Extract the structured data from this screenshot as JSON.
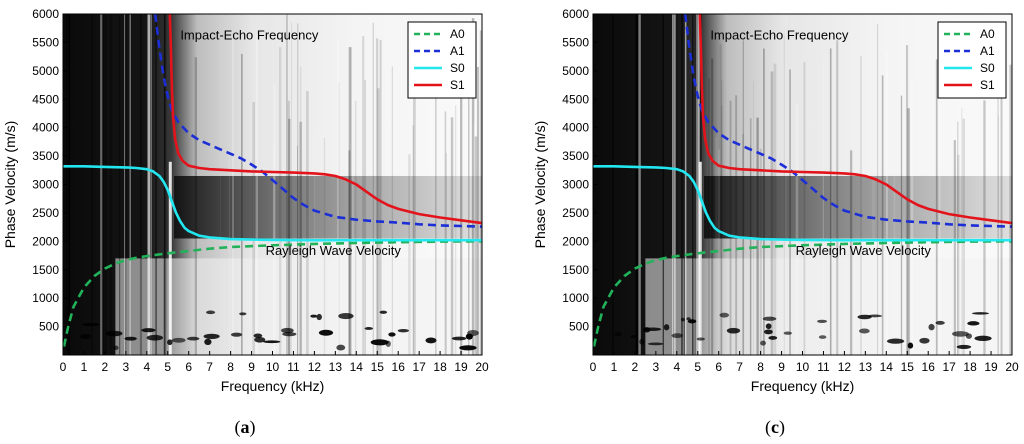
{
  "colors": {
    "A0": "#22b35a",
    "A1": "#1c2fd6",
    "S0": "#22e6f0",
    "S1": "#e3131b"
  },
  "chart_data": [
    {
      "panel": "a",
      "type": "line",
      "caption_label": "a",
      "background": "dispersion image (grayscale spectrogram)",
      "xlabel": "Frequency (kHz)",
      "ylabel": "Phase Velocity (m/s)",
      "xlim": [
        0,
        20
      ],
      "ylim": [
        0,
        6000
      ],
      "xticks": [
        "0",
        "1",
        "2",
        "3",
        "4",
        "5",
        "6",
        "7",
        "8",
        "9",
        "10",
        "11",
        "12",
        "13",
        "14",
        "15",
        "16",
        "17",
        "18",
        "19",
        "20"
      ],
      "yticks": [
        "500",
        "1000",
        "1500",
        "2000",
        "2500",
        "3000",
        "3500",
        "4000",
        "4500",
        "5000",
        "5500",
        "6000"
      ],
      "annotations": [
        "Impact-Echo Frequency",
        "Rayleigh Wave Velocity"
      ],
      "legend": [
        "A0",
        "A1",
        "S0",
        "S1"
      ],
      "series": [
        {
          "name": "A0",
          "style": "dashed",
          "x": [
            0.05,
            0.25,
            0.5,
            1,
            1.5,
            2,
            2.5,
            3,
            3.5,
            4,
            4.5,
            5,
            6,
            7,
            8,
            10,
            12,
            14,
            16,
            18,
            20
          ],
          "y": [
            150,
            500,
            850,
            1190,
            1390,
            1520,
            1610,
            1670,
            1710,
            1740,
            1765,
            1790,
            1830,
            1870,
            1900,
            1930,
            1955,
            1970,
            1985,
            1995,
            2000
          ]
        },
        {
          "name": "A1",
          "style": "dashed",
          "x": [
            4.4,
            4.6,
            4.8,
            5.0,
            5.2,
            5.5,
            6,
            6.5,
            7,
            7.5,
            8,
            8.5,
            9,
            9.5,
            10,
            10.5,
            11,
            11.5,
            12,
            13,
            14,
            15,
            16,
            17,
            18,
            19,
            20
          ],
          "y": [
            6000,
            5400,
            4900,
            4550,
            4300,
            4100,
            3900,
            3780,
            3700,
            3620,
            3540,
            3460,
            3350,
            3230,
            3080,
            2920,
            2760,
            2640,
            2540,
            2430,
            2380,
            2350,
            2330,
            2300,
            2280,
            2270,
            2260
          ]
        },
        {
          "name": "S0",
          "style": "solid",
          "x": [
            0,
            1,
            2,
            3,
            3.5,
            4,
            4.3,
            4.6,
            4.8,
            5.0,
            5.2,
            5.4,
            5.6,
            5.8,
            6,
            6.5,
            7,
            8,
            9,
            10,
            12,
            14,
            16,
            18,
            20
          ],
          "y": [
            3320,
            3320,
            3310,
            3300,
            3290,
            3270,
            3230,
            3150,
            3050,
            2900,
            2700,
            2500,
            2350,
            2240,
            2180,
            2100,
            2070,
            2040,
            2030,
            2025,
            2020,
            2020,
            2020,
            2020,
            2020
          ]
        },
        {
          "name": "S1",
          "style": "solid",
          "x": [
            5.1,
            5.15,
            5.2,
            5.25,
            5.35,
            5.5,
            5.7,
            6,
            6.5,
            7,
            8,
            9,
            10,
            11,
            12,
            12.5,
            13,
            13.5,
            14,
            14.5,
            15,
            15.5,
            16,
            17,
            18,
            19,
            20
          ],
          "y": [
            6000,
            5400,
            4700,
            4200,
            3800,
            3550,
            3420,
            3330,
            3290,
            3270,
            3250,
            3230,
            3220,
            3210,
            3195,
            3180,
            3150,
            3090,
            3000,
            2870,
            2740,
            2640,
            2570,
            2480,
            2420,
            2370,
            2320
          ]
        }
      ]
    },
    {
      "panel": "c",
      "type": "line",
      "caption_label": "c",
      "background": "dispersion image (grayscale spectrogram)",
      "xlabel": "Frequency (kHz)",
      "ylabel": "Phase Velocity (m/s)",
      "xlim": [
        0,
        20
      ],
      "ylim": [
        0,
        6000
      ],
      "xticks": [
        "0",
        "1",
        "2",
        "3",
        "4",
        "5",
        "6",
        "7",
        "8",
        "9",
        "10",
        "11",
        "12",
        "13",
        "14",
        "15",
        "16",
        "17",
        "18",
        "19",
        "20"
      ],
      "yticks": [
        "500",
        "1000",
        "1500",
        "2000",
        "2500",
        "3000",
        "3500",
        "4000",
        "4500",
        "5000",
        "5500",
        "6000"
      ],
      "annotations": [
        "Impact-Echo Frequency",
        "Rayleigh Wave Velocity"
      ],
      "legend": [
        "A0",
        "A1",
        "S0",
        "S1"
      ],
      "series": [
        {
          "name": "A0",
          "style": "dashed",
          "x": [
            0.05,
            0.25,
            0.5,
            1,
            1.5,
            2,
            2.5,
            3,
            3.5,
            4,
            4.5,
            5,
            6,
            7,
            8,
            10,
            12,
            14,
            16,
            18,
            20
          ],
          "y": [
            150,
            500,
            850,
            1190,
            1390,
            1520,
            1610,
            1670,
            1710,
            1740,
            1765,
            1790,
            1830,
            1870,
            1900,
            1930,
            1955,
            1970,
            1985,
            1995,
            2000
          ]
        },
        {
          "name": "A1",
          "style": "dashed",
          "x": [
            4.4,
            4.6,
            4.8,
            5.0,
            5.2,
            5.5,
            6,
            6.5,
            7,
            7.5,
            8,
            8.5,
            9,
            9.5,
            10,
            10.5,
            11,
            11.5,
            12,
            13,
            14,
            15,
            16,
            17,
            18,
            19,
            20
          ],
          "y": [
            6000,
            5400,
            4900,
            4550,
            4300,
            4100,
            3900,
            3780,
            3700,
            3620,
            3540,
            3460,
            3350,
            3230,
            3080,
            2920,
            2760,
            2640,
            2540,
            2430,
            2380,
            2350,
            2330,
            2300,
            2280,
            2270,
            2260
          ]
        },
        {
          "name": "S0",
          "style": "solid",
          "x": [
            0,
            1,
            2,
            3,
            3.5,
            4,
            4.3,
            4.6,
            4.8,
            5.0,
            5.2,
            5.4,
            5.6,
            5.8,
            6,
            6.5,
            7,
            8,
            9,
            10,
            12,
            14,
            16,
            18,
            20
          ],
          "y": [
            3320,
            3320,
            3310,
            3300,
            3290,
            3270,
            3230,
            3150,
            3050,
            2900,
            2700,
            2500,
            2350,
            2240,
            2180,
            2100,
            2070,
            2040,
            2030,
            2025,
            2020,
            2020,
            2020,
            2020,
            2020
          ]
        },
        {
          "name": "S1",
          "style": "solid",
          "x": [
            5.1,
            5.15,
            5.2,
            5.25,
            5.35,
            5.5,
            5.7,
            6,
            6.5,
            7,
            8,
            9,
            10,
            11,
            12,
            12.5,
            13,
            13.5,
            14,
            14.5,
            15,
            15.5,
            16,
            17,
            18,
            19,
            20
          ],
          "y": [
            6000,
            5400,
            4700,
            4200,
            3800,
            3550,
            3420,
            3330,
            3290,
            3270,
            3250,
            3230,
            3220,
            3210,
            3195,
            3180,
            3150,
            3090,
            3000,
            2870,
            2740,
            2640,
            2570,
            2480,
            2420,
            2370,
            2320
          ]
        }
      ]
    }
  ]
}
